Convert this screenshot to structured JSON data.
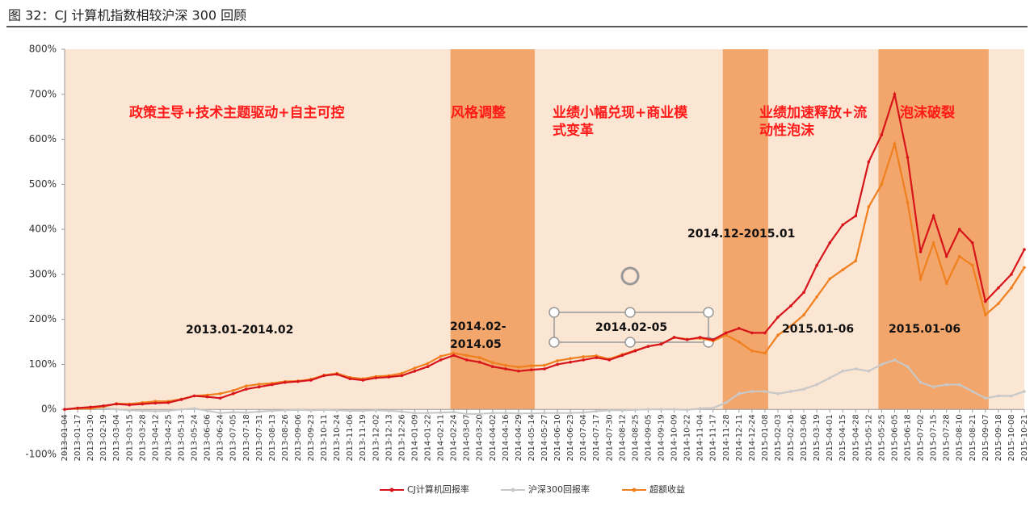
{
  "chart_data": {
    "type": "line",
    "title": "图 32：CJ 计算机指数相较沪深 300 回顾",
    "categories": [
      "2013-01-04",
      "2013-01-17",
      "2013-01-30",
      "2013-02-19",
      "2013-03-04",
      "2013-03-15",
      "2013-03-28",
      "2013-04-12",
      "2013-04-25",
      "2013-05-13",
      "2013-05-24",
      "2013-06-06",
      "2013-06-24",
      "2013-07-05",
      "2013-07-18",
      "2013-07-31",
      "2013-08-13",
      "2013-08-26",
      "2013-09-06",
      "2013-09-23",
      "2013-10-11",
      "2013-10-24",
      "2013-11-06",
      "2013-11-19",
      "2013-12-02",
      "2013-12-13",
      "2013-12-26",
      "2014-01-09",
      "2014-01-22",
      "2014-02-11",
      "2014-02-24",
      "2014-03-07",
      "2014-03-20",
      "2014-04-02",
      "2014-04-16",
      "2014-04-29",
      "2014-05-14",
      "2014-05-27",
      "2014-06-10",
      "2014-06-23",
      "2014-07-04",
      "2014-07-17",
      "2014-07-30",
      "2014-08-12",
      "2014-08-25",
      "2014-09-05",
      "2014-09-19",
      "2014-10-09",
      "2014-10-22",
      "2014-11-04",
      "2014-11-17",
      "2014-11-28",
      "2014-12-11",
      "2014-12-24",
      "2015-01-08",
      "2015-02-03",
      "2015-02-16",
      "2015-03-06",
      "2015-03-19",
      "2015-04-01",
      "2015-04-15",
      "2015-04-28",
      "2015-05-12",
      "2015-05-25",
      "2015-06-05",
      "2015-06-18",
      "2015-07-02",
      "2015-07-15",
      "2015-07-28",
      "2015-08-10",
      "2015-08-21",
      "2015-09-07",
      "2015-09-18",
      "2015-10-08",
      "2015-10-21"
    ],
    "series": [
      {
        "name": "CJ计算机回报率",
        "color": "#d7141a",
        "values": [
          0,
          3,
          5,
          8,
          12,
          10,
          12,
          14,
          15,
          22,
          30,
          28,
          25,
          35,
          45,
          50,
          55,
          60,
          62,
          65,
          75,
          78,
          68,
          65,
          70,
          72,
          75,
          85,
          95,
          110,
          120,
          110,
          105,
          95,
          90,
          85,
          88,
          90,
          100,
          105,
          110,
          115,
          110,
          120,
          130,
          140,
          145,
          160,
          155,
          160,
          155,
          170,
          180,
          170,
          170,
          205,
          230,
          260,
          320,
          370,
          410,
          430,
          550,
          610,
          700,
          560,
          350,
          430,
          340,
          400,
          370,
          240,
          270,
          300,
          355
        ]
      },
      {
        "name": "沪深300回报率",
        "color": "#c8c8c8",
        "values": [
          0,
          2,
          5,
          3,
          0,
          -2,
          -3,
          -4,
          -3,
          0,
          2,
          -3,
          -8,
          -6,
          -7,
          -5,
          -3,
          -2,
          -1,
          -2,
          -1,
          -2,
          -3,
          -3,
          -2,
          -3,
          -5,
          -8,
          -8,
          -7,
          -6,
          -10,
          -10,
          -8,
          -8,
          -9,
          -9,
          -8,
          -8,
          -8,
          -7,
          -4,
          -2,
          -2,
          -1,
          0,
          0,
          0,
          -1,
          2,
          3,
          15,
          35,
          40,
          40,
          35,
          40,
          45,
          55,
          70,
          85,
          90,
          85,
          100,
          110,
          95,
          60,
          50,
          55,
          55,
          40,
          25,
          30,
          30,
          40
        ]
      },
      {
        "name": "超额收益",
        "color": "#f07f1e",
        "values": [
          0,
          2,
          2,
          6,
          13,
          12,
          15,
          18,
          18,
          23,
          30,
          32,
          35,
          42,
          52,
          56,
          58,
          62,
          63,
          67,
          76,
          80,
          71,
          68,
          73,
          75,
          80,
          92,
          102,
          118,
          125,
          120,
          115,
          104,
          98,
          94,
          97,
          98,
          108,
          113,
          117,
          119,
          112,
          122,
          131,
          140,
          145,
          160,
          156,
          158,
          152,
          165,
          150,
          130,
          125,
          165,
          185,
          210,
          250,
          290,
          310,
          330,
          450,
          500,
          590,
          460,
          290,
          370,
          280,
          340,
          320,
          210,
          235,
          270,
          315
        ]
      }
    ],
    "ylim": [
      -100,
      800
    ],
    "yticks": [
      {
        "value": -100,
        "label": "-100%"
      },
      {
        "value": 0,
        "label": "0%"
      },
      {
        "value": 100,
        "label": "100%"
      },
      {
        "value": 200,
        "label": "200%"
      },
      {
        "value": 300,
        "label": "300%"
      },
      {
        "value": 400,
        "label": "400%"
      },
      {
        "value": 500,
        "label": "500%"
      },
      {
        "value": 600,
        "label": "600%"
      },
      {
        "value": 700,
        "label": "700%"
      },
      {
        "value": 800,
        "label": "800%"
      }
    ],
    "shaded_periods": [
      {
        "start": "2014-02-24",
        "end": "2014-05-14"
      },
      {
        "start": "2014-11-28",
        "end": "2015-01-08"
      },
      {
        "start": "2015-05-25",
        "end": "2015-09-07"
      }
    ],
    "period_labels": [
      "政策主导+技术主题驱动+自主可控",
      "风格调整",
      "业绩小幅兑现+商业模\n式变革",
      "业绩加速释放+流\n动性泡沫",
      "泡沫破裂"
    ],
    "date_labels": [
      "2013.01-2014.02",
      "2014.02-\n2014.05",
      "2014.02-05",
      "2014.12-2015.01",
      "2015.01-06",
      "2015.01-06"
    ]
  }
}
